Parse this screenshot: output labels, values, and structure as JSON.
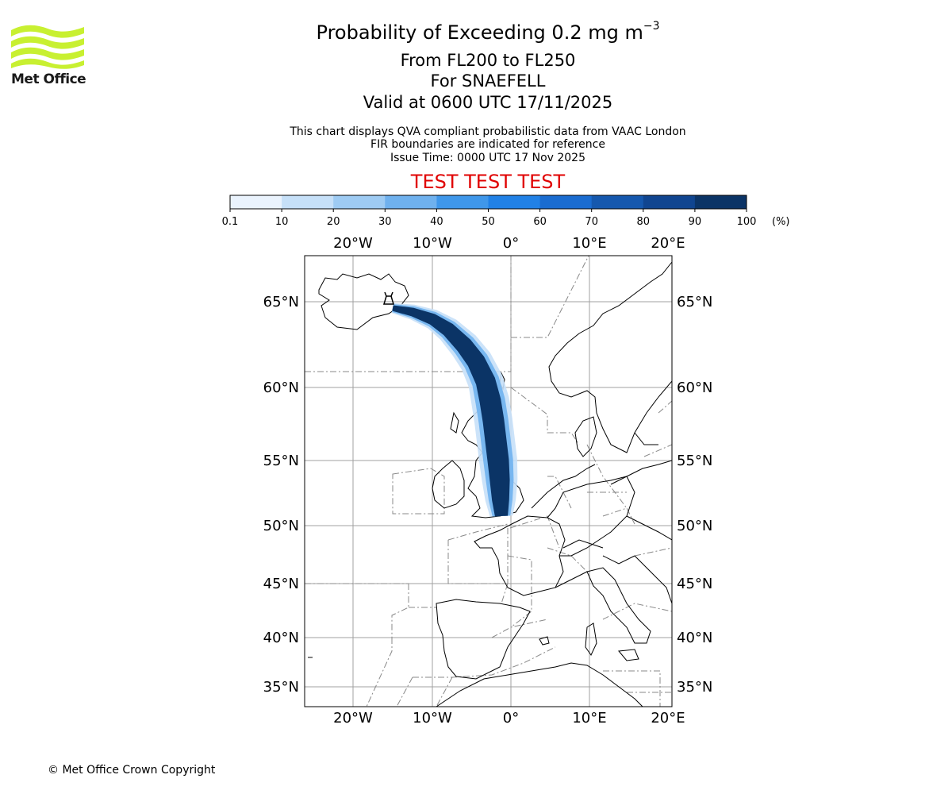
{
  "logo": {
    "text": "Met Office",
    "wave_color": "#c8f031",
    "icon": "met-office-wave-logo"
  },
  "title": {
    "main": "Probability of Exceeding 0.2 mg m",
    "main_superscript": "−3",
    "levels": "From FL200 to FL250",
    "volcano_line": "For SNAEFELL",
    "valid_line": "Valid at 0600 UTC 17/11/2025"
  },
  "subtitle": {
    "line1": "This chart displays QVA compliant probabilistic data from VAAC London",
    "line2": "FIR boundaries are indicated for reference",
    "line3": "Issue Time: 0000 UTC 17 Nov 2025"
  },
  "banner": {
    "text": "TEST TEST TEST",
    "color": "#e00000"
  },
  "colorbar": {
    "tick_labels": [
      "0.1",
      "10",
      "20",
      "30",
      "40",
      "50",
      "60",
      "70",
      "80",
      "90",
      "100"
    ],
    "unit": "(%)",
    "colors": [
      "#eaf3fd",
      "#c6e0f8",
      "#9ecbf3",
      "#6fb1ee",
      "#3f97ea",
      "#2181e6",
      "#1a6cd0",
      "#1558ae",
      "#104590",
      "#0b3466"
    ]
  },
  "map": {
    "lon_labels": [
      "20°W",
      "10°W",
      "0°",
      "10°E",
      "20°E"
    ],
    "lat_labels": [
      "65°N",
      "60°N",
      "55°N",
      "50°N",
      "45°N",
      "40°N",
      "35°N"
    ],
    "volcano_marker": "volcano-icon",
    "plume_color": "#0b3466",
    "grid_color": "#a0a0a0",
    "fir_color": "#888888"
  },
  "footer": {
    "copyright": "© Met Office Crown Copyright"
  }
}
